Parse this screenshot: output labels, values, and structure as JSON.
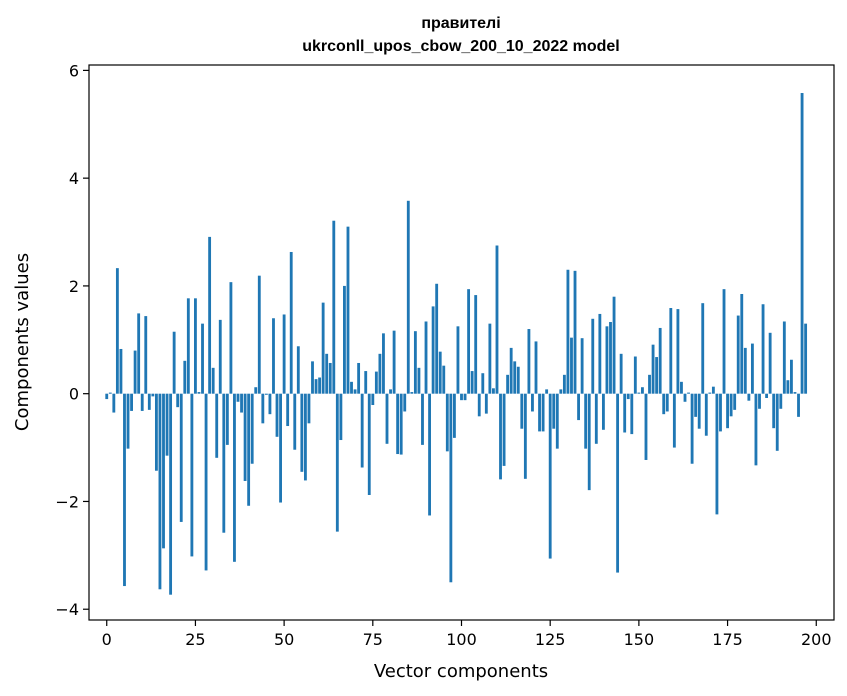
{
  "chart_data": {
    "type": "bar",
    "title": "правителі",
    "subtitle": "ukrconll_upos_cbow_200_10_2022 model",
    "xlabel": "Vector components",
    "ylabel": "Components values",
    "xlim": [
      -5,
      205
    ],
    "ylim": [
      -4.2,
      6.1
    ],
    "xticks": [
      0,
      25,
      50,
      75,
      100,
      125,
      150,
      175,
      200
    ],
    "xtick_labels": [
      "0",
      "25",
      "50",
      "75",
      "100",
      "125",
      "150",
      "175",
      "200"
    ],
    "yticks": [
      -4,
      -2,
      0,
      2,
      4,
      6
    ],
    "ytick_labels": [
      "−4",
      "−2",
      "0",
      "2",
      "4",
      "6"
    ],
    "grid": false,
    "bar_color": "#1f77b4",
    "values": [
      -0.1,
      0.02,
      -0.35,
      2.33,
      0.83,
      -3.57,
      -1.02,
      -0.32,
      0.8,
      1.49,
      -0.32,
      1.44,
      -0.3,
      -0.05,
      -1.43,
      -3.63,
      -2.87,
      -1.15,
      -3.73,
      1.15,
      -0.25,
      -2.38,
      0.61,
      1.77,
      -3.02,
      1.77,
      0.03,
      1.3,
      -3.28,
      2.91,
      0.48,
      -1.19,
      1.37,
      -2.58,
      -0.95,
      2.07,
      -3.12,
      -0.15,
      -0.35,
      -1.62,
      -2.08,
      -1.3,
      0.12,
      2.19,
      -0.55,
      -0.02,
      -0.38,
      1.4,
      -0.8,
      -2.02,
      1.47,
      -0.6,
      2.63,
      -1.04,
      0.88,
      -1.45,
      -1.61,
      -0.55,
      0.6,
      0.27,
      0.3,
      1.69,
      0.74,
      0.57,
      3.21,
      -2.56,
      -0.86,
      2.0,
      3.1,
      0.22,
      0.08,
      0.57,
      -1.37,
      0.42,
      -1.88,
      -0.21,
      0.41,
      0.74,
      1.12,
      -0.93,
      0.08,
      1.17,
      -1.12,
      -1.13,
      -0.33,
      3.58,
      0.03,
      1.16,
      0.48,
      -0.95,
      1.34,
      -2.26,
      1.62,
      2.04,
      0.78,
      0.52,
      -1.07,
      -3.5,
      -0.82,
      1.25,
      -0.12,
      -0.12,
      1.94,
      0.42,
      1.83,
      -0.42,
      0.38,
      -0.37,
      1.3,
      0.1,
      2.75,
      -1.59,
      -1.34,
      0.35,
      0.85,
      0.6,
      0.5,
      -0.65,
      -1.58,
      1.2,
      -0.33,
      0.97,
      -0.7,
      -0.7,
      0.08,
      -3.06,
      -0.65,
      -1.02,
      0.08,
      0.35,
      2.3,
      1.04,
      2.28,
      -0.49,
      1.03,
      -1.02,
      -1.79,
      1.39,
      -0.93,
      1.48,
      -0.67,
      1.25,
      1.33,
      1.8,
      -3.32,
      0.74,
      -0.72,
      -0.1,
      -0.75,
      0.69,
      0.02,
      0.12,
      -1.23,
      0.35,
      0.91,
      0.68,
      1.22,
      -0.38,
      -0.33,
      1.59,
      -1.0,
      1.57,
      0.22,
      -0.15,
      0.02,
      -1.3,
      -0.43,
      -0.65,
      1.68,
      -0.78,
      0.02,
      0.13,
      -2.24,
      -0.7,
      1.94,
      -0.64,
      -0.42,
      -0.3,
      1.45,
      1.85,
      0.85,
      -0.13,
      0.93,
      -1.33,
      -0.28,
      1.66,
      -0.08,
      1.13,
      -0.64,
      -1.06,
      -0.28,
      1.34,
      0.25,
      0.63,
      0.03,
      -0.43,
      5.58,
      1.3
    ]
  }
}
